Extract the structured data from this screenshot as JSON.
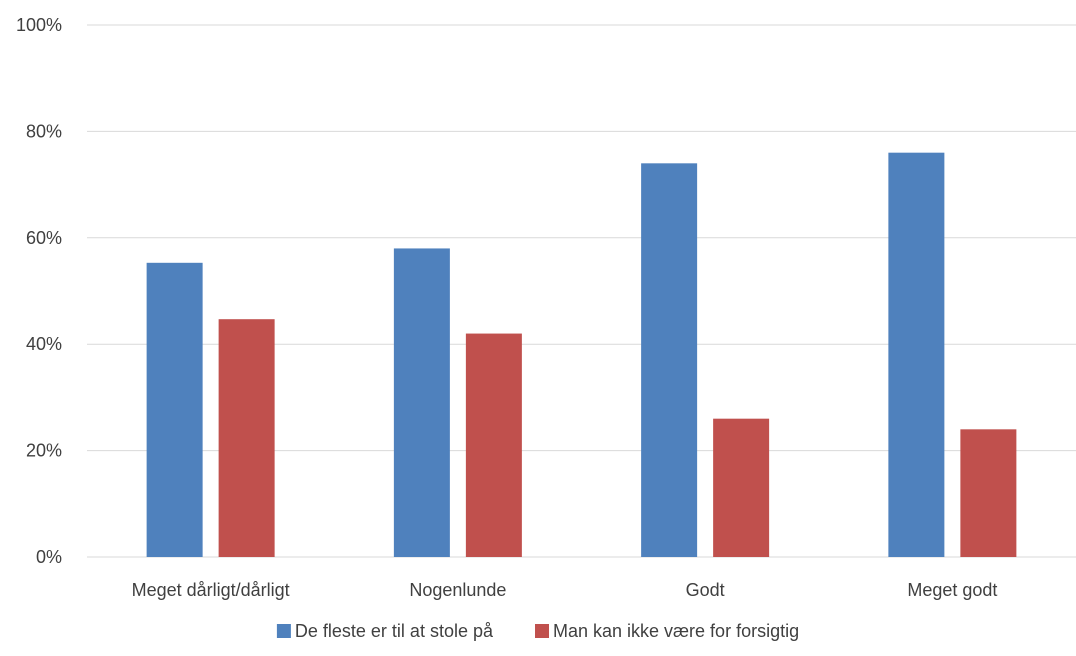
{
  "chart_data": {
    "type": "bar",
    "title": "",
    "xlabel": "",
    "ylabel": "",
    "categories": [
      "Meget dårligt/dårligt",
      "Nogenlunde",
      "Godt",
      "Meget godt"
    ],
    "series": [
      {
        "name": "De fleste er til at stole på",
        "values": [
          55.3,
          58,
          74,
          76
        ],
        "color": "#4f81bd"
      },
      {
        "name": "Man kan ikke være for forsigtig",
        "values": [
          44.7,
          42,
          26,
          24
        ],
        "color": "#c0504d"
      }
    ],
    "ylim": [
      0,
      100
    ],
    "yticks": [
      0,
      20,
      40,
      60,
      80,
      100
    ],
    "ytick_labels": [
      "0%",
      "20%",
      "40%",
      "60%",
      "80%",
      "100%"
    ],
    "grid": true,
    "legend_position": "bottom"
  }
}
